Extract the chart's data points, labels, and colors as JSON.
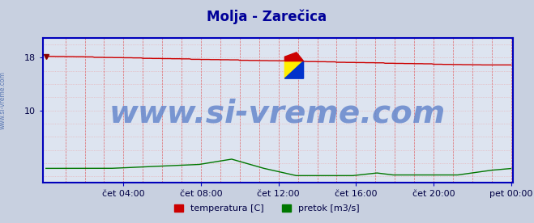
{
  "title": "Molja - Zarečica",
  "title_color": "#000099",
  "title_fontsize": 12,
  "bg_color": "#c8d0e0",
  "plot_bg_color": "#dde4f0",
  "border_color": "#0000bb",
  "grid_color_v": "#dd3333",
  "grid_color_h": "#ee9999",
  "yticks": [
    10,
    18
  ],
  "ylim": [
    -1,
    21
  ],
  "n_points": 289,
  "xtick_labels": [
    "čet 04:00",
    "čet 08:00",
    "čet 12:00",
    "čet 16:00",
    "čet 20:00",
    "pet 00:00"
  ],
  "xtick_positions": [
    48,
    96,
    144,
    192,
    240,
    288
  ],
  "temp_color": "#cc0000",
  "flow_color": "#007700",
  "watermark": "www.si-vreme.com",
  "watermark_color": "#6688cc",
  "watermark_fontsize": 28,
  "legend_labels": [
    "temperatura [C]",
    "pretok [m3/s]"
  ],
  "legend_colors": [
    "#cc0000",
    "#007700"
  ],
  "side_text": "www.si-vreme.com",
  "side_text_color": "#4466aa"
}
